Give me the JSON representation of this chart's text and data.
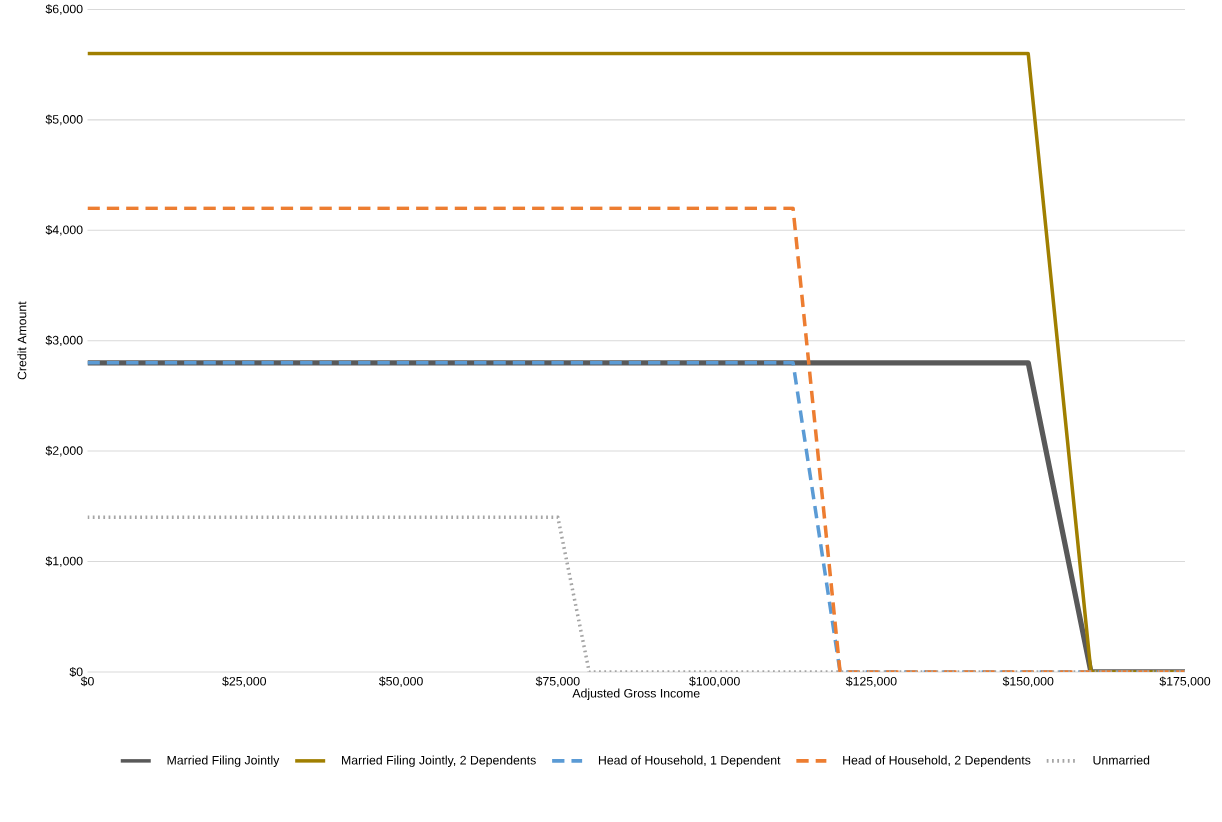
{
  "chart_data": {
    "type": "line",
    "xlabel": "Adjusted Gross Income",
    "ylabel": "Credit Amount",
    "xlim": [
      0,
      175000
    ],
    "ylim": [
      0,
      6000
    ],
    "xticks": [
      {
        "value": 0,
        "label": "$0"
      },
      {
        "value": 25000,
        "label": "$25,000"
      },
      {
        "value": 50000,
        "label": "$50,000"
      },
      {
        "value": 75000,
        "label": "$75,000"
      },
      {
        "value": 100000,
        "label": "$100,000"
      },
      {
        "value": 125000,
        "label": "$125,000"
      },
      {
        "value": 150000,
        "label": "$150,000"
      },
      {
        "value": 175000,
        "label": "$175,000"
      }
    ],
    "yticks": [
      {
        "value": 0,
        "label": "$0"
      },
      {
        "value": 1000,
        "label": "$1,000"
      },
      {
        "value": 2000,
        "label": "$2,000"
      },
      {
        "value": 3000,
        "label": "$3,000"
      },
      {
        "value": 4000,
        "label": "$4,000"
      },
      {
        "value": 5000,
        "label": "$5,000"
      },
      {
        "value": 6000,
        "label": "$6,000"
      }
    ],
    "grid": "y",
    "legend": "bottom",
    "marker": "none",
    "series": [
      {
        "name": "Married Filing Jointly",
        "color": "#595959",
        "line_style": "solid",
        "x": [
          0,
          150000,
          160000,
          175000
        ],
        "values": [
          2800,
          2800,
          0,
          0
        ]
      },
      {
        "name": "Married Filing Jointly, 2 Dependents",
        "color": "#a07f00",
        "line_style": "solid",
        "x": [
          0,
          150000,
          160000,
          175000
        ],
        "values": [
          5600,
          5600,
          0,
          0
        ]
      },
      {
        "name": "Head of Household, 1 Dependent",
        "color": "#5b9bd5",
        "line_style": "dashed",
        "x": [
          0,
          112500,
          120000,
          175000
        ],
        "values": [
          2800,
          2800,
          0,
          0
        ]
      },
      {
        "name": "Head of Household, 2 Dependents",
        "color": "#ed7d31",
        "line_style": "dashed",
        "x": [
          0,
          112500,
          120000,
          175000
        ],
        "values": [
          4200,
          4200,
          0,
          0
        ]
      },
      {
        "name": "Unmarried",
        "color": "#a5a5a5",
        "line_style": "dotted",
        "x": [
          0,
          75000,
          80000,
          175000
        ],
        "values": [
          1400,
          1400,
          0,
          0
        ]
      }
    ]
  }
}
